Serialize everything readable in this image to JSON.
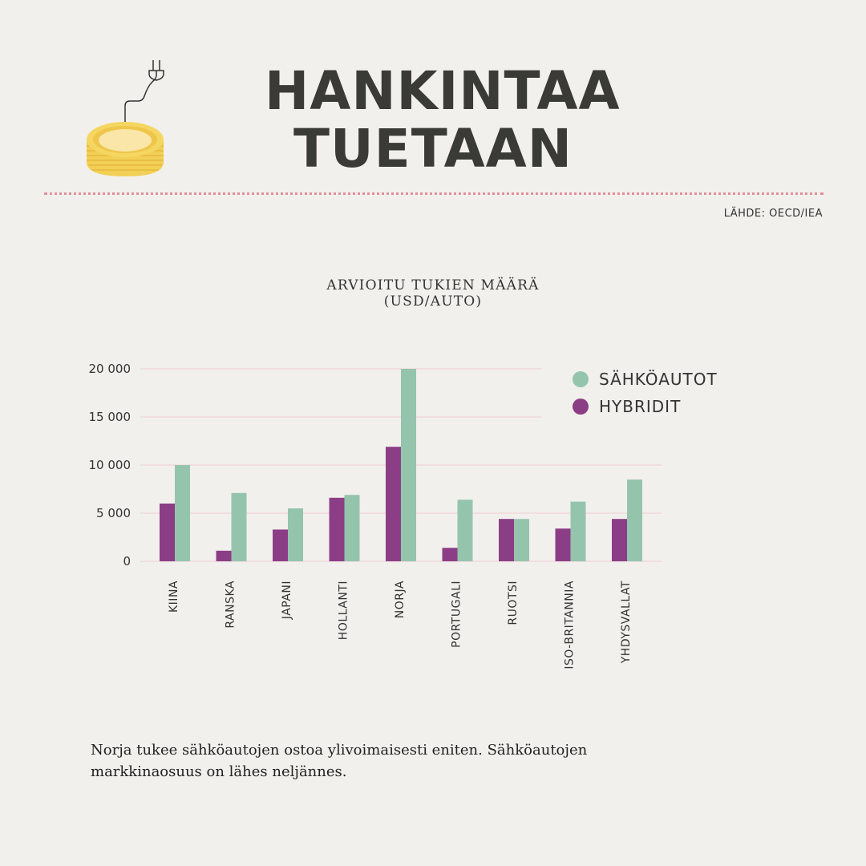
{
  "title_lines": [
    "HANKINTAA",
    "TUETAAN"
  ],
  "source": "LÄHDE: OECD/IEA",
  "caption": "Norja tukee sähköautojen ostoa ylivoimaisesti eniten. Sähköautojen markkinaosuus on lähes neljännes.",
  "colors": {
    "background": "#f2f0ec",
    "electric": "#95c4ad",
    "hybrid": "#8b3e86",
    "gridline": "#efcdd2",
    "coin": "#f2d35a"
  },
  "icons": {
    "coin": "coin-with-plug-icon"
  },
  "chart_data": {
    "type": "bar",
    "title_lines": [
      "ARVIOITU TUKIEN MÄÄRÄ",
      "(USD/AUTO)"
    ],
    "categories": [
      "KIINA",
      "RANSKA",
      "JAPANI",
      "HOLLANTI",
      "NORJA",
      "PORTUGALI",
      "RUOTSI",
      "ISO-BRITANNIA",
      "YHDYSVALLAT"
    ],
    "series": [
      {
        "name": "HYBRIDIT",
        "color": "#8b3e86",
        "values": [
          6000,
          1100,
          3300,
          6600,
          11900,
          1400,
          4400,
          3400,
          4400
        ]
      },
      {
        "name": "SÄHKÖAUTOT",
        "color": "#95c4ad",
        "values": [
          10000,
          7100,
          5500,
          6900,
          20000,
          6400,
          4400,
          6200,
          8500
        ]
      }
    ],
    "legend": [
      {
        "label": "SÄHKÖAUTOT",
        "color": "#95c4ad"
      },
      {
        "label": "HYBRIDIT",
        "color": "#8b3e86"
      }
    ],
    "legend_position": "top-right",
    "yticks": [
      0,
      5000,
      10000,
      15000,
      20000
    ],
    "ytick_labels": [
      "0",
      "5 000",
      "10 000",
      "15 000",
      "20 000"
    ],
    "ylim": [
      0,
      20000
    ],
    "grid": true
  }
}
